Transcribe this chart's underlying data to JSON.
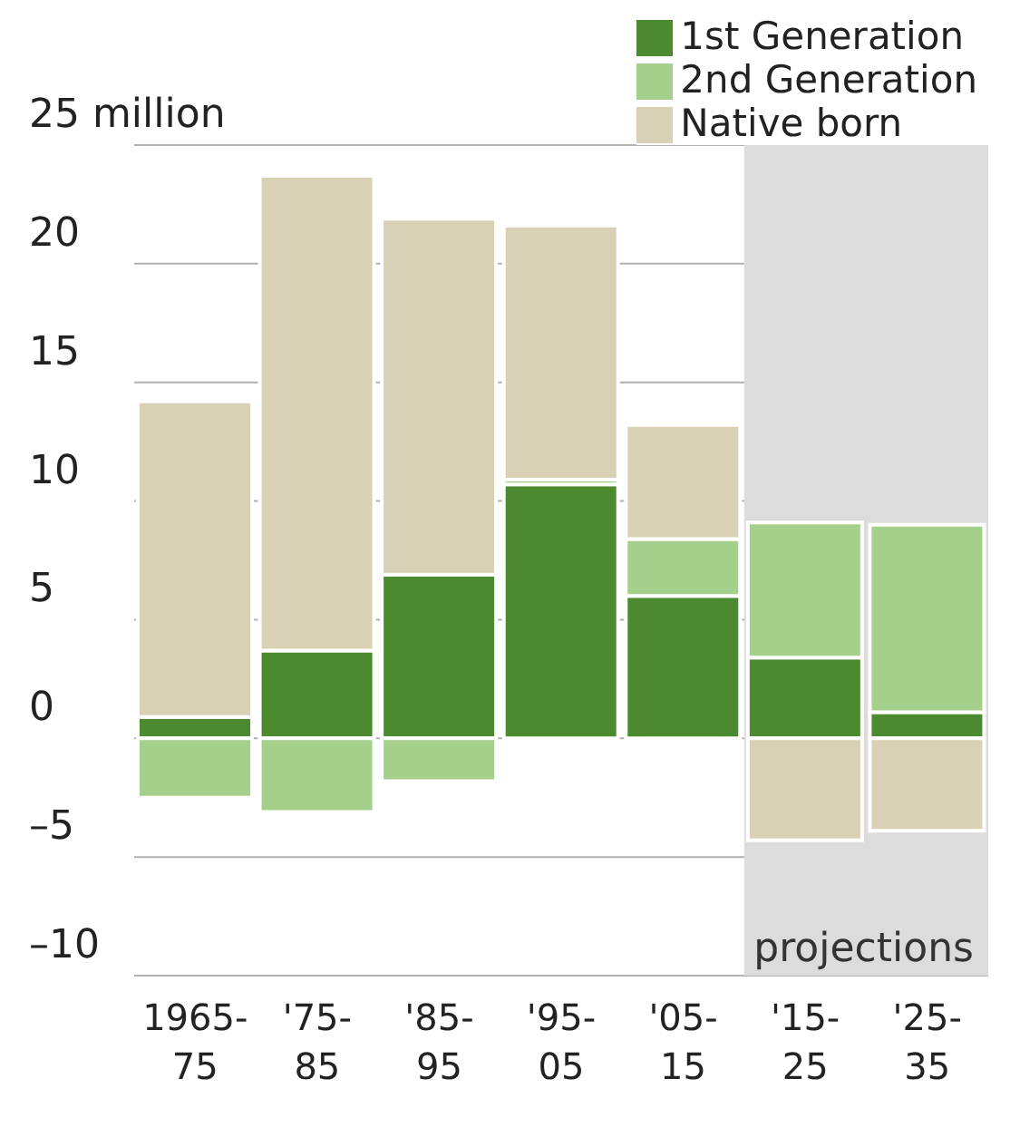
{
  "chart_data": {
    "type": "bar",
    "stacked": true,
    "categories": [
      "1965-75",
      "'75-85",
      "'85-95",
      "'95-05",
      "'05-15",
      "'15-25",
      "'25-35"
    ],
    "series": [
      {
        "name": "1st Generation",
        "color": "#4b8a2f",
        "values": [
          0.9,
          3.7,
          6.9,
          10.7,
          6.0,
          3.4,
          1.1
        ]
      },
      {
        "name": "2nd Generation",
        "color": "#a4d08b",
        "values": [
          -2.5,
          -3.1,
          -1.8,
          0.2,
          2.4,
          5.7,
          7.9
        ]
      },
      {
        "name": "Native born",
        "color": "#d8d1b5",
        "values": [
          13.3,
          20.0,
          15.0,
          10.7,
          4.8,
          -4.3,
          -3.9
        ]
      }
    ],
    "ylim": [
      -10,
      25
    ],
    "yticks": [
      {
        "value": -10,
        "label": "–10"
      },
      {
        "value": -5,
        "label": "–5"
      },
      0,
      5,
      10,
      15,
      20,
      {
        "value": 25,
        "label": "25 million"
      }
    ],
    "grid": "y",
    "legend": "top right",
    "bands": [
      {
        "axis": "x",
        "from": "'15-25",
        "to": "'25-35",
        "label": "projections",
        "color": "#dcdcdc"
      }
    ]
  }
}
